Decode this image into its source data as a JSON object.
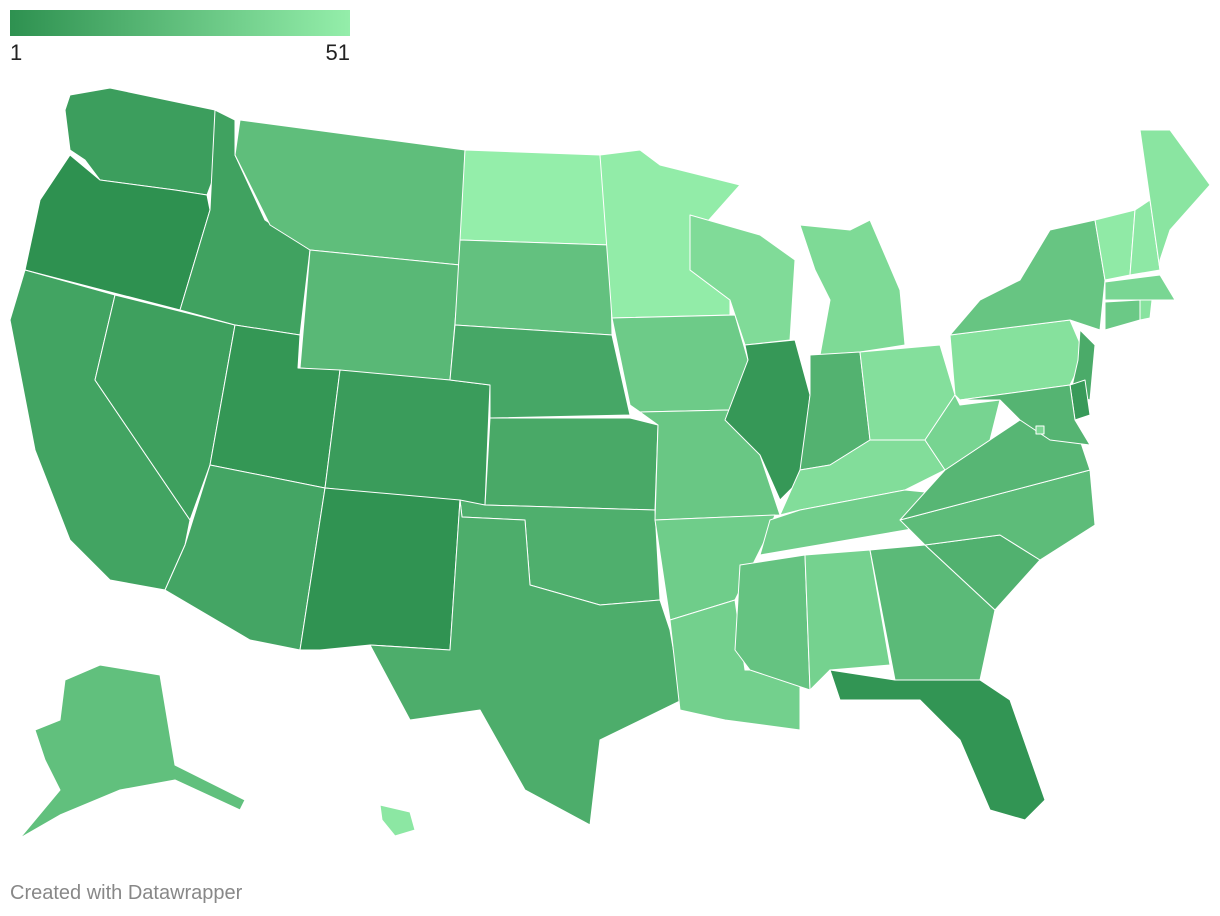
{
  "chart_data": {
    "type": "choropleth",
    "values": [
      8,
      1,
      11,
      9,
      10,
      25,
      22,
      4,
      7,
      12,
      2,
      51,
      27,
      13,
      14,
      17,
      16,
      50,
      32,
      30,
      33,
      35,
      41,
      5,
      40,
      19,
      43,
      42,
      34,
      28,
      36,
      23,
      3,
      18,
      24,
      21,
      37,
      44,
      29,
      15,
      6,
      20,
      49,
      48,
      46,
      38,
      31,
      45,
      39,
      26,
      47
    ],
    "legend_ticks": [
      1,
      51
    ],
    "colors": [
      "#2e9150",
      "#94eeaa"
    ],
    "footer": "Created with Datawrapper"
  }
}
